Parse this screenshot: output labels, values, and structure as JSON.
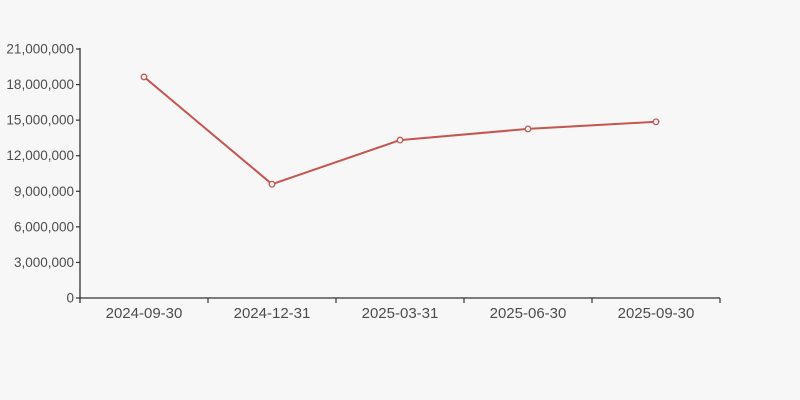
{
  "page": {
    "background_color": "#f7f7f7"
  },
  "chart_data": {
    "type": "line",
    "title": "",
    "xlabel": "",
    "ylabel": "",
    "categories": [
      "2024-09-30",
      "2024-12-31",
      "2025-03-31",
      "2025-06-30",
      "2025-09-30"
    ],
    "series": [
      {
        "values": [
          18650000,
          9600000,
          13320000,
          14260000,
          14860000
        ],
        "color": "#c4554f",
        "marker": "open-circle",
        "marker_fill": "#f7f7f7",
        "line_width": 2
      }
    ],
    "ylim": [
      0,
      21000000
    ],
    "y_ticks": {
      "values": [
        0,
        3000000,
        6000000,
        9000000,
        12000000,
        15000000,
        18000000,
        21000000
      ],
      "labels": [
        "0",
        "3,000,000",
        "6,000,000",
        "9,000,000",
        "12,000,000",
        "15,000,000",
        "18,000,000",
        "21,000,000"
      ]
    },
    "grid": false,
    "legend": "none",
    "axis_color": "#333333",
    "label_color": "#4d4d4d"
  }
}
